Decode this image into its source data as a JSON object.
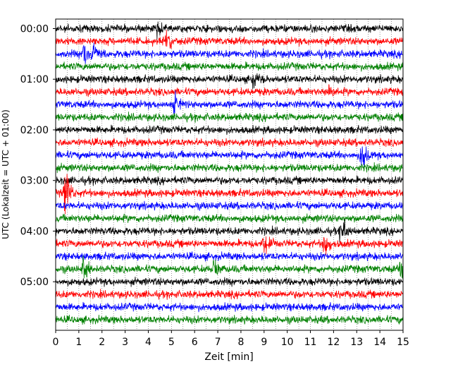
{
  "chart_data": {
    "type": "line",
    "chart_kind": "helicorder (seismogram drum plot)",
    "title": "",
    "xlabel": "Zeit  [min]",
    "ylabel": "UTC (Lokalzeit = UTC + 01:00)",
    "xlim": [
      0,
      15
    ],
    "x_ticks": [
      "0",
      "1",
      "2",
      "3",
      "4",
      "5",
      "6",
      "7",
      "8",
      "9",
      "10",
      "11",
      "12",
      "13",
      "14",
      "15"
    ],
    "y_tick_labels": [
      "00:00",
      "01:00",
      "02:00",
      "03:00",
      "04:00",
      "05:00"
    ],
    "trace_count": 24,
    "trace_interval_min": 15,
    "trace_colors": [
      "#000000",
      "#ff0000",
      "#0000ff",
      "#008000"
    ],
    "vertical_grid": "dotted, every 0.5 min",
    "events": [
      {
        "trace": 0,
        "minute": 4.4,
        "amplitude": 1.2
      },
      {
        "trace": 1,
        "minute": 4.8,
        "amplitude": 2.2
      },
      {
        "trace": 2,
        "minute": 1.2,
        "amplitude": 2.3
      },
      {
        "trace": 2,
        "minute": 1.6,
        "amplitude": 2.0
      },
      {
        "trace": 4,
        "minute": 8.5,
        "amplitude": 1.2
      },
      {
        "trace": 5,
        "minute": 11.8,
        "amplitude": 1.8
      },
      {
        "trace": 6,
        "minute": 5.1,
        "amplitude": 1.8
      },
      {
        "trace": 10,
        "minute": 13.2,
        "amplitude": 2.6
      },
      {
        "trace": 13,
        "minute": 0.4,
        "amplitude": 3.5
      },
      {
        "trace": 16,
        "minute": 12.3,
        "amplitude": 2.4
      },
      {
        "trace": 17,
        "minute": 9.0,
        "amplitude": 1.6
      },
      {
        "trace": 17,
        "minute": 11.6,
        "amplitude": 2.2
      },
      {
        "trace": 19,
        "minute": 1.2,
        "amplitude": 1.8
      },
      {
        "trace": 19,
        "minute": 6.8,
        "amplitude": 1.8
      },
      {
        "trace": 19,
        "minute": 14.9,
        "amplitude": 2.0
      }
    ]
  }
}
